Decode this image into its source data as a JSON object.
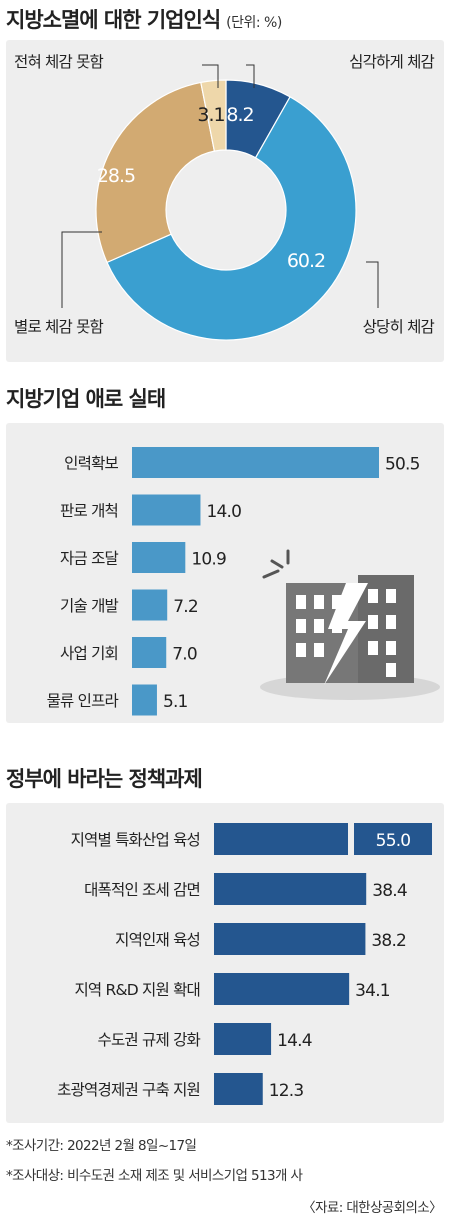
{
  "colors": {
    "pie_dark": "#24568f",
    "pie_light": "#3a9fd0",
    "pie_tan": "#d2aa72",
    "pie_cream": "#eed7aa",
    "bar_light": "#4a98c8",
    "bar_dark": "#24568f"
  },
  "chart_data": [
    {
      "type": "pie",
      "title": "지방소멸에 대한 기업인식",
      "unit": "(단위: %)",
      "slices": [
        {
          "label": "심각하게 체감",
          "value": 8.2,
          "color": "#24568f"
        },
        {
          "label": "상당히 체감",
          "value": 60.2,
          "color": "#3a9fd0"
        },
        {
          "label": "별로 체감 못함",
          "value": 28.5,
          "color": "#d2aa72"
        },
        {
          "label": "전혀 체감 못함",
          "value": 3.1,
          "color": "#eed7aa"
        }
      ]
    },
    {
      "type": "bar",
      "orientation": "horizontal",
      "title": "지방기업 애로 실태",
      "categories": [
        "인력확보",
        "판로 개척",
        "자금 조달",
        "기술 개발",
        "사업 기회",
        "물류 인프라"
      ],
      "values": [
        50.5,
        14.0,
        10.9,
        7.2,
        7.0,
        5.1
      ],
      "labels": [
        "50.5",
        "14.0",
        "10.9",
        "7.2",
        "7.0",
        "5.1"
      ],
      "xlim": [
        0,
        50.5
      ]
    },
    {
      "type": "bar",
      "orientation": "horizontal",
      "title": "정부에 바라는 정책과제",
      "categories": [
        "지역별 특화산업 육성",
        "대폭적인 조세 감면",
        "지역인재 육성",
        "지역 R&D 지원 확대",
        "수도권 규제 강화",
        "초광역경제권 구축 지원"
      ],
      "values": [
        55.0,
        38.4,
        38.2,
        34.1,
        14.4,
        12.3
      ],
      "labels": [
        "55.0",
        "38.4",
        "38.2",
        "34.1",
        "14.4",
        "12.3"
      ],
      "xlim": [
        0,
        55.0
      ]
    }
  ],
  "footnotes": {
    "line1": "*조사기간: 2022년 2월 8일~17일",
    "line2": "*조사대상: 비수도권 소재 제조 및 서비스기업 513개 사",
    "source": "〈자료: 대한상공회의소〉"
  }
}
